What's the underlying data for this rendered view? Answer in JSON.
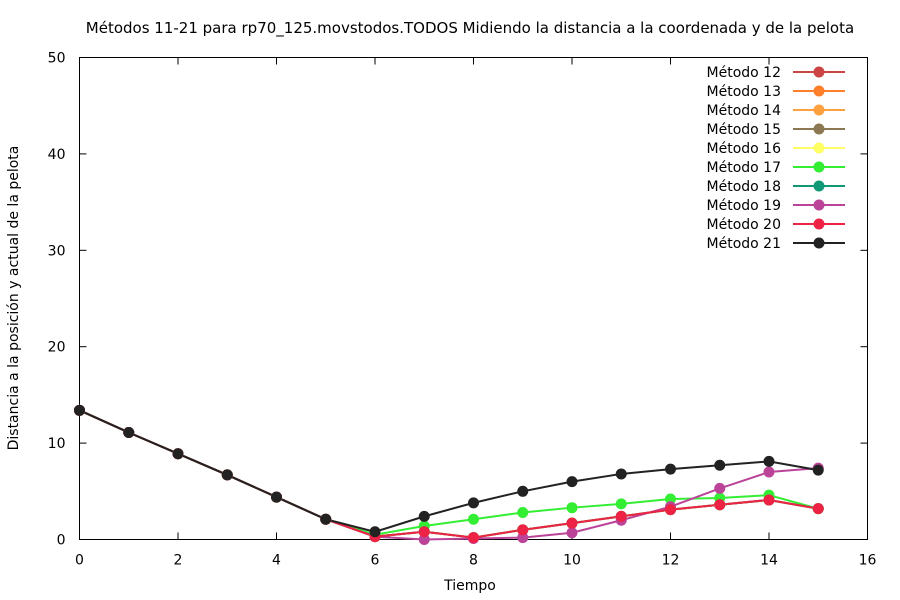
{
  "chart_data": {
    "type": "line",
    "title": "Métodos 11-21 para rp70_125.movstodos.TODOS Midiendo la distancia a la coordenada y de la pelota",
    "xlabel": "Tiempo",
    "ylabel": "Distancia a la posición y actual de la pelota",
    "xlim": [
      0,
      16
    ],
    "ylim": [
      0,
      50
    ],
    "xticks": [
      0,
      2,
      4,
      6,
      8,
      10,
      12,
      14,
      16
    ],
    "yticks": [
      0,
      10,
      20,
      30,
      40,
      50
    ],
    "grid": false,
    "legend_position": "top-right",
    "x": [
      0,
      1,
      2,
      3,
      4,
      5,
      6,
      7,
      8,
      9,
      10,
      11,
      12,
      13,
      14,
      15
    ],
    "series": [
      {
        "name": "Método 12",
        "color": "#cc4444",
        "values": [
          13.4,
          11.1,
          8.9,
          6.7,
          4.4,
          2.1,
          0.3,
          0.8,
          0.2,
          1.0,
          1.7,
          2.4,
          3.1,
          3.6,
          4.1,
          3.2
        ]
      },
      {
        "name": "Método 13",
        "color": "#ff7f2a",
        "values": [
          13.4,
          11.1,
          8.9,
          6.7,
          4.4,
          2.1,
          0.3,
          0.8,
          0.2,
          1.0,
          1.7,
          2.4,
          3.1,
          3.6,
          4.1,
          3.2
        ]
      },
      {
        "name": "Método 14",
        "color": "#ffa040",
        "values": [
          13.4,
          11.1,
          8.9,
          6.7,
          4.4,
          2.1,
          0.3,
          0.8,
          0.2,
          1.0,
          1.7,
          2.4,
          3.1,
          3.6,
          4.1,
          3.2
        ]
      },
      {
        "name": "Método 15",
        "color": "#8c7853",
        "values": [
          13.4,
          11.1,
          8.9,
          6.7,
          4.4,
          2.1,
          0.3,
          0.8,
          0.2,
          1.0,
          1.7,
          2.4,
          3.1,
          3.6,
          4.1,
          3.2
        ]
      },
      {
        "name": "Método 16",
        "color": "#ffff66",
        "values": [
          13.4,
          11.1,
          8.9,
          6.7,
          4.4,
          2.1,
          0.3,
          0.8,
          0.2,
          1.0,
          1.7,
          2.4,
          3.1,
          3.6,
          4.1,
          3.2
        ]
      },
      {
        "name": "Método 17",
        "color": "#33ee33",
        "values": [
          13.4,
          11.1,
          8.9,
          6.7,
          4.4,
          2.1,
          0.5,
          1.4,
          2.1,
          2.8,
          3.3,
          3.7,
          4.2,
          4.3,
          4.6,
          3.2
        ]
      },
      {
        "name": "Método 18",
        "color": "#119977",
        "values": [
          13.4,
          11.1,
          8.9,
          6.7,
          4.4,
          2.1,
          0.3,
          0.8,
          0.2,
          1.0,
          1.7,
          2.4,
          3.1,
          3.6,
          4.1,
          3.2
        ]
      },
      {
        "name": "Método 19",
        "color": "#bb4499",
        "values": [
          13.4,
          11.1,
          8.9,
          6.7,
          4.4,
          2.1,
          0.3,
          0.0,
          0.1,
          0.2,
          0.7,
          2.0,
          3.4,
          5.3,
          7.0,
          7.4
        ]
      },
      {
        "name": "Método 20",
        "color": "#ee2244",
        "values": [
          13.4,
          11.1,
          8.9,
          6.7,
          4.4,
          2.1,
          0.3,
          0.8,
          0.2,
          1.0,
          1.7,
          2.4,
          3.1,
          3.6,
          4.1,
          3.2
        ]
      },
      {
        "name": "Método 21",
        "color": "#222222",
        "values": [
          13.4,
          11.1,
          8.9,
          6.7,
          4.4,
          2.1,
          0.8,
          2.4,
          3.8,
          5.0,
          6.0,
          6.8,
          7.3,
          7.7,
          8.1,
          7.2
        ]
      }
    ]
  }
}
